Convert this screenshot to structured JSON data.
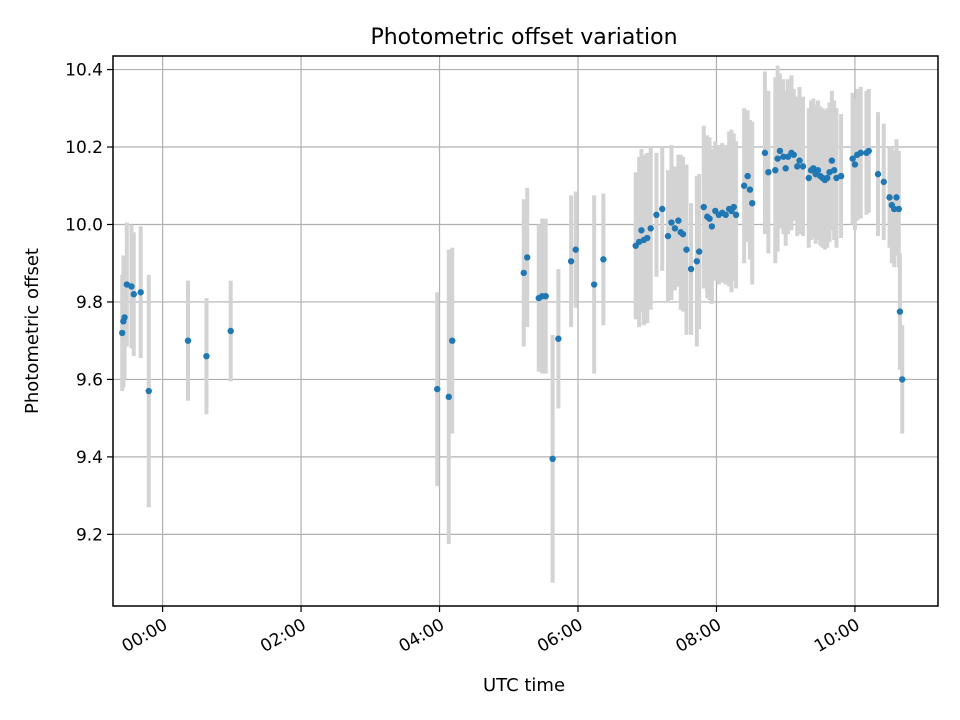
{
  "chart_data": {
    "type": "scatter",
    "title": "Photometric offset variation",
    "xlabel": "UTC time",
    "ylabel": "Photometric offset",
    "grid": true,
    "xlim": [
      "23:17",
      "11:12"
    ],
    "ylim": [
      9.015,
      10.435
    ],
    "x_ticks": [
      "00:00",
      "02:00",
      "04:00",
      "06:00",
      "08:00",
      "10:00"
    ],
    "y_ticks": [
      "9.2",
      "9.4",
      "9.6",
      "9.8",
      "10.0",
      "10.2",
      "10.4"
    ],
    "colors": {
      "points": "#1f77b4",
      "error_bars": "#d3d3d3",
      "grid": "#b0b0b0"
    },
    "series": [
      {
        "points": [
          {
            "x": "23:25",
            "y": 9.72,
            "err": 0.15
          },
          {
            "x": "23:26",
            "y": 9.75,
            "err": 0.17
          },
          {
            "x": "23:27",
            "y": 9.76,
            "err": 0.16
          },
          {
            "x": "23:29",
            "y": 9.845,
            "err": 0.16
          },
          {
            "x": "23:33",
            "y": 9.84,
            "err": 0.16
          },
          {
            "x": "23:35",
            "y": 9.82,
            "err": 0.16
          },
          {
            "x": "23:41",
            "y": 9.825,
            "err": 0.17
          },
          {
            "x": "23:48",
            "y": 9.57,
            "err": 0.3
          },
          {
            "x": "00:22",
            "y": 9.7,
            "err": 0.155
          },
          {
            "x": "00:38",
            "y": 9.66,
            "err": 0.15
          },
          {
            "x": "00:59",
            "y": 9.725,
            "err": 0.13
          },
          {
            "x": "03:58",
            "y": 9.575,
            "err": 0.25
          },
          {
            "x": "04:08",
            "y": 9.555,
            "err": 0.38
          },
          {
            "x": "04:11",
            "y": 9.7,
            "err": 0.24
          },
          {
            "x": "05:13",
            "y": 9.875,
            "err": 0.19
          },
          {
            "x": "05:16",
            "y": 9.915,
            "err": 0.18
          },
          {
            "x": "05:26",
            "y": 9.81,
            "err": 0.19
          },
          {
            "x": "05:29",
            "y": 9.815,
            "err": 0.2
          },
          {
            "x": "05:32",
            "y": 9.815,
            "err": 0.2
          },
          {
            "x": "05:38",
            "y": 9.395,
            "err": 0.32
          },
          {
            "x": "05:43",
            "y": 9.705,
            "err": 0.18
          },
          {
            "x": "05:54",
            "y": 9.905,
            "err": 0.17
          },
          {
            "x": "05:58",
            "y": 9.935,
            "err": 0.15
          },
          {
            "x": "06:14",
            "y": 9.845,
            "err": 0.23
          },
          {
            "x": "06:22",
            "y": 9.91,
            "err": 0.17
          },
          {
            "x": "06:50",
            "y": 9.945,
            "err": 0.19
          },
          {
            "x": "06:53",
            "y": 9.955,
            "err": 0.22
          },
          {
            "x": "06:55",
            "y": 9.985,
            "err": 0.21
          },
          {
            "x": "06:57",
            "y": 9.96,
            "err": 0.22
          },
          {
            "x": "07:00",
            "y": 9.965,
            "err": 0.22
          },
          {
            "x": "07:03",
            "y": 9.99,
            "err": 0.21
          },
          {
            "x": "07:08",
            "y": 10.025,
            "err": 0.16
          },
          {
            "x": "07:13",
            "y": 10.04,
            "err": 0.16
          },
          {
            "x": "07:18",
            "y": 9.97,
            "err": 0.17
          },
          {
            "x": "07:21",
            "y": 10.005,
            "err": 0.2
          },
          {
            "x": "07:24",
            "y": 9.99,
            "err": 0.16
          },
          {
            "x": "07:27",
            "y": 10.01,
            "err": 0.17
          },
          {
            "x": "07:29",
            "y": 9.98,
            "err": 0.2
          },
          {
            "x": "07:31",
            "y": 9.975,
            "err": 0.2
          },
          {
            "x": "07:34",
            "y": 9.935,
            "err": 0.22
          },
          {
            "x": "07:38",
            "y": 9.885,
            "err": 0.17
          },
          {
            "x": "07:43",
            "y": 9.905,
            "err": 0.22
          },
          {
            "x": "07:45",
            "y": 9.93,
            "err": 0.2
          },
          {
            "x": "07:49",
            "y": 10.045,
            "err": 0.21
          },
          {
            "x": "07:52",
            "y": 10.02,
            "err": 0.21
          },
          {
            "x": "07:54",
            "y": 10.015,
            "err": 0.21
          },
          {
            "x": "07:56",
            "y": 9.995,
            "err": 0.2
          },
          {
            "x": "07:59",
            "y": 10.035,
            "err": 0.18
          },
          {
            "x": "08:02",
            "y": 10.025,
            "err": 0.18
          },
          {
            "x": "08:05",
            "y": 10.03,
            "err": 0.18
          },
          {
            "x": "08:08",
            "y": 10.025,
            "err": 0.18
          },
          {
            "x": "08:11",
            "y": 10.04,
            "err": 0.2
          },
          {
            "x": "08:13",
            "y": 10.035,
            "err": 0.21
          },
          {
            "x": "08:15",
            "y": 10.045,
            "err": 0.19
          },
          {
            "x": "08:17",
            "y": 10.025,
            "err": 0.19
          },
          {
            "x": "08:24",
            "y": 10.1,
            "err": 0.2
          },
          {
            "x": "08:27",
            "y": 10.125,
            "err": 0.17
          },
          {
            "x": "08:29",
            "y": 10.09,
            "err": 0.18
          },
          {
            "x": "08:31",
            "y": 10.055,
            "err": 0.21
          },
          {
            "x": "08:42",
            "y": 10.185,
            "err": 0.21
          },
          {
            "x": "08:45",
            "y": 10.135,
            "err": 0.21
          },
          {
            "x": "08:51",
            "y": 10.14,
            "err": 0.24
          },
          {
            "x": "08:53",
            "y": 10.17,
            "err": 0.24
          },
          {
            "x": "08:55",
            "y": 10.19,
            "err": 0.2
          },
          {
            "x": "08:58",
            "y": 10.175,
            "err": 0.2
          },
          {
            "x": "09:00",
            "y": 10.145,
            "err": 0.2
          },
          {
            "x": "09:02",
            "y": 10.175,
            "err": 0.2
          },
          {
            "x": "09:05",
            "y": 10.185,
            "err": 0.2
          },
          {
            "x": "09:07",
            "y": 10.18,
            "err": 0.17
          },
          {
            "x": "09:10",
            "y": 10.15,
            "err": 0.18
          },
          {
            "x": "09:12",
            "y": 10.165,
            "err": 0.19
          },
          {
            "x": "09:15",
            "y": 10.15,
            "err": 0.18
          },
          {
            "x": "09:20",
            "y": 10.12,
            "err": 0.18
          },
          {
            "x": "09:22",
            "y": 10.14,
            "err": 0.18
          },
          {
            "x": "09:24",
            "y": 10.145,
            "err": 0.18
          },
          {
            "x": "09:26",
            "y": 10.13,
            "err": 0.18
          },
          {
            "x": "09:28",
            "y": 10.14,
            "err": 0.18
          },
          {
            "x": "09:30",
            "y": 10.125,
            "err": 0.18
          },
          {
            "x": "09:32",
            "y": 10.12,
            "err": 0.18
          },
          {
            "x": "09:34",
            "y": 10.115,
            "err": 0.18
          },
          {
            "x": "09:36",
            "y": 10.12,
            "err": 0.18
          },
          {
            "x": "09:38",
            "y": 10.135,
            "err": 0.18
          },
          {
            "x": "09:40",
            "y": 10.165,
            "err": 0.18
          },
          {
            "x": "09:42",
            "y": 10.14,
            "err": 0.18
          },
          {
            "x": "09:44",
            "y": 10.12,
            "err": 0.18
          },
          {
            "x": "09:48",
            "y": 10.125,
            "err": 0.16
          },
          {
            "x": "09:58",
            "y": 10.17,
            "err": 0.17
          },
          {
            "x": "10:00",
            "y": 10.155,
            "err": 0.17
          },
          {
            "x": "10:02",
            "y": 10.18,
            "err": 0.17
          },
          {
            "x": "10:05",
            "y": 10.185,
            "err": 0.17
          },
          {
            "x": "10:10",
            "y": 10.185,
            "err": 0.16
          },
          {
            "x": "10:12",
            "y": 10.19,
            "err": 0.16
          },
          {
            "x": "10:20",
            "y": 10.13,
            "err": 0.16
          },
          {
            "x": "10:25",
            "y": 10.11,
            "err": 0.15
          },
          {
            "x": "10:30",
            "y": 10.07,
            "err": 0.13
          },
          {
            "x": "10:32",
            "y": 10.05,
            "err": 0.15
          },
          {
            "x": "10:34",
            "y": 10.04,
            "err": 0.15
          },
          {
            "x": "10:36",
            "y": 10.07,
            "err": 0.15
          },
          {
            "x": "10:38",
            "y": 10.04,
            "err": 0.15
          },
          {
            "x": "10:39",
            "y": 9.775,
            "err": 0.15
          },
          {
            "x": "10:41",
            "y": 9.6,
            "err": 0.14
          }
        ]
      }
    ]
  }
}
